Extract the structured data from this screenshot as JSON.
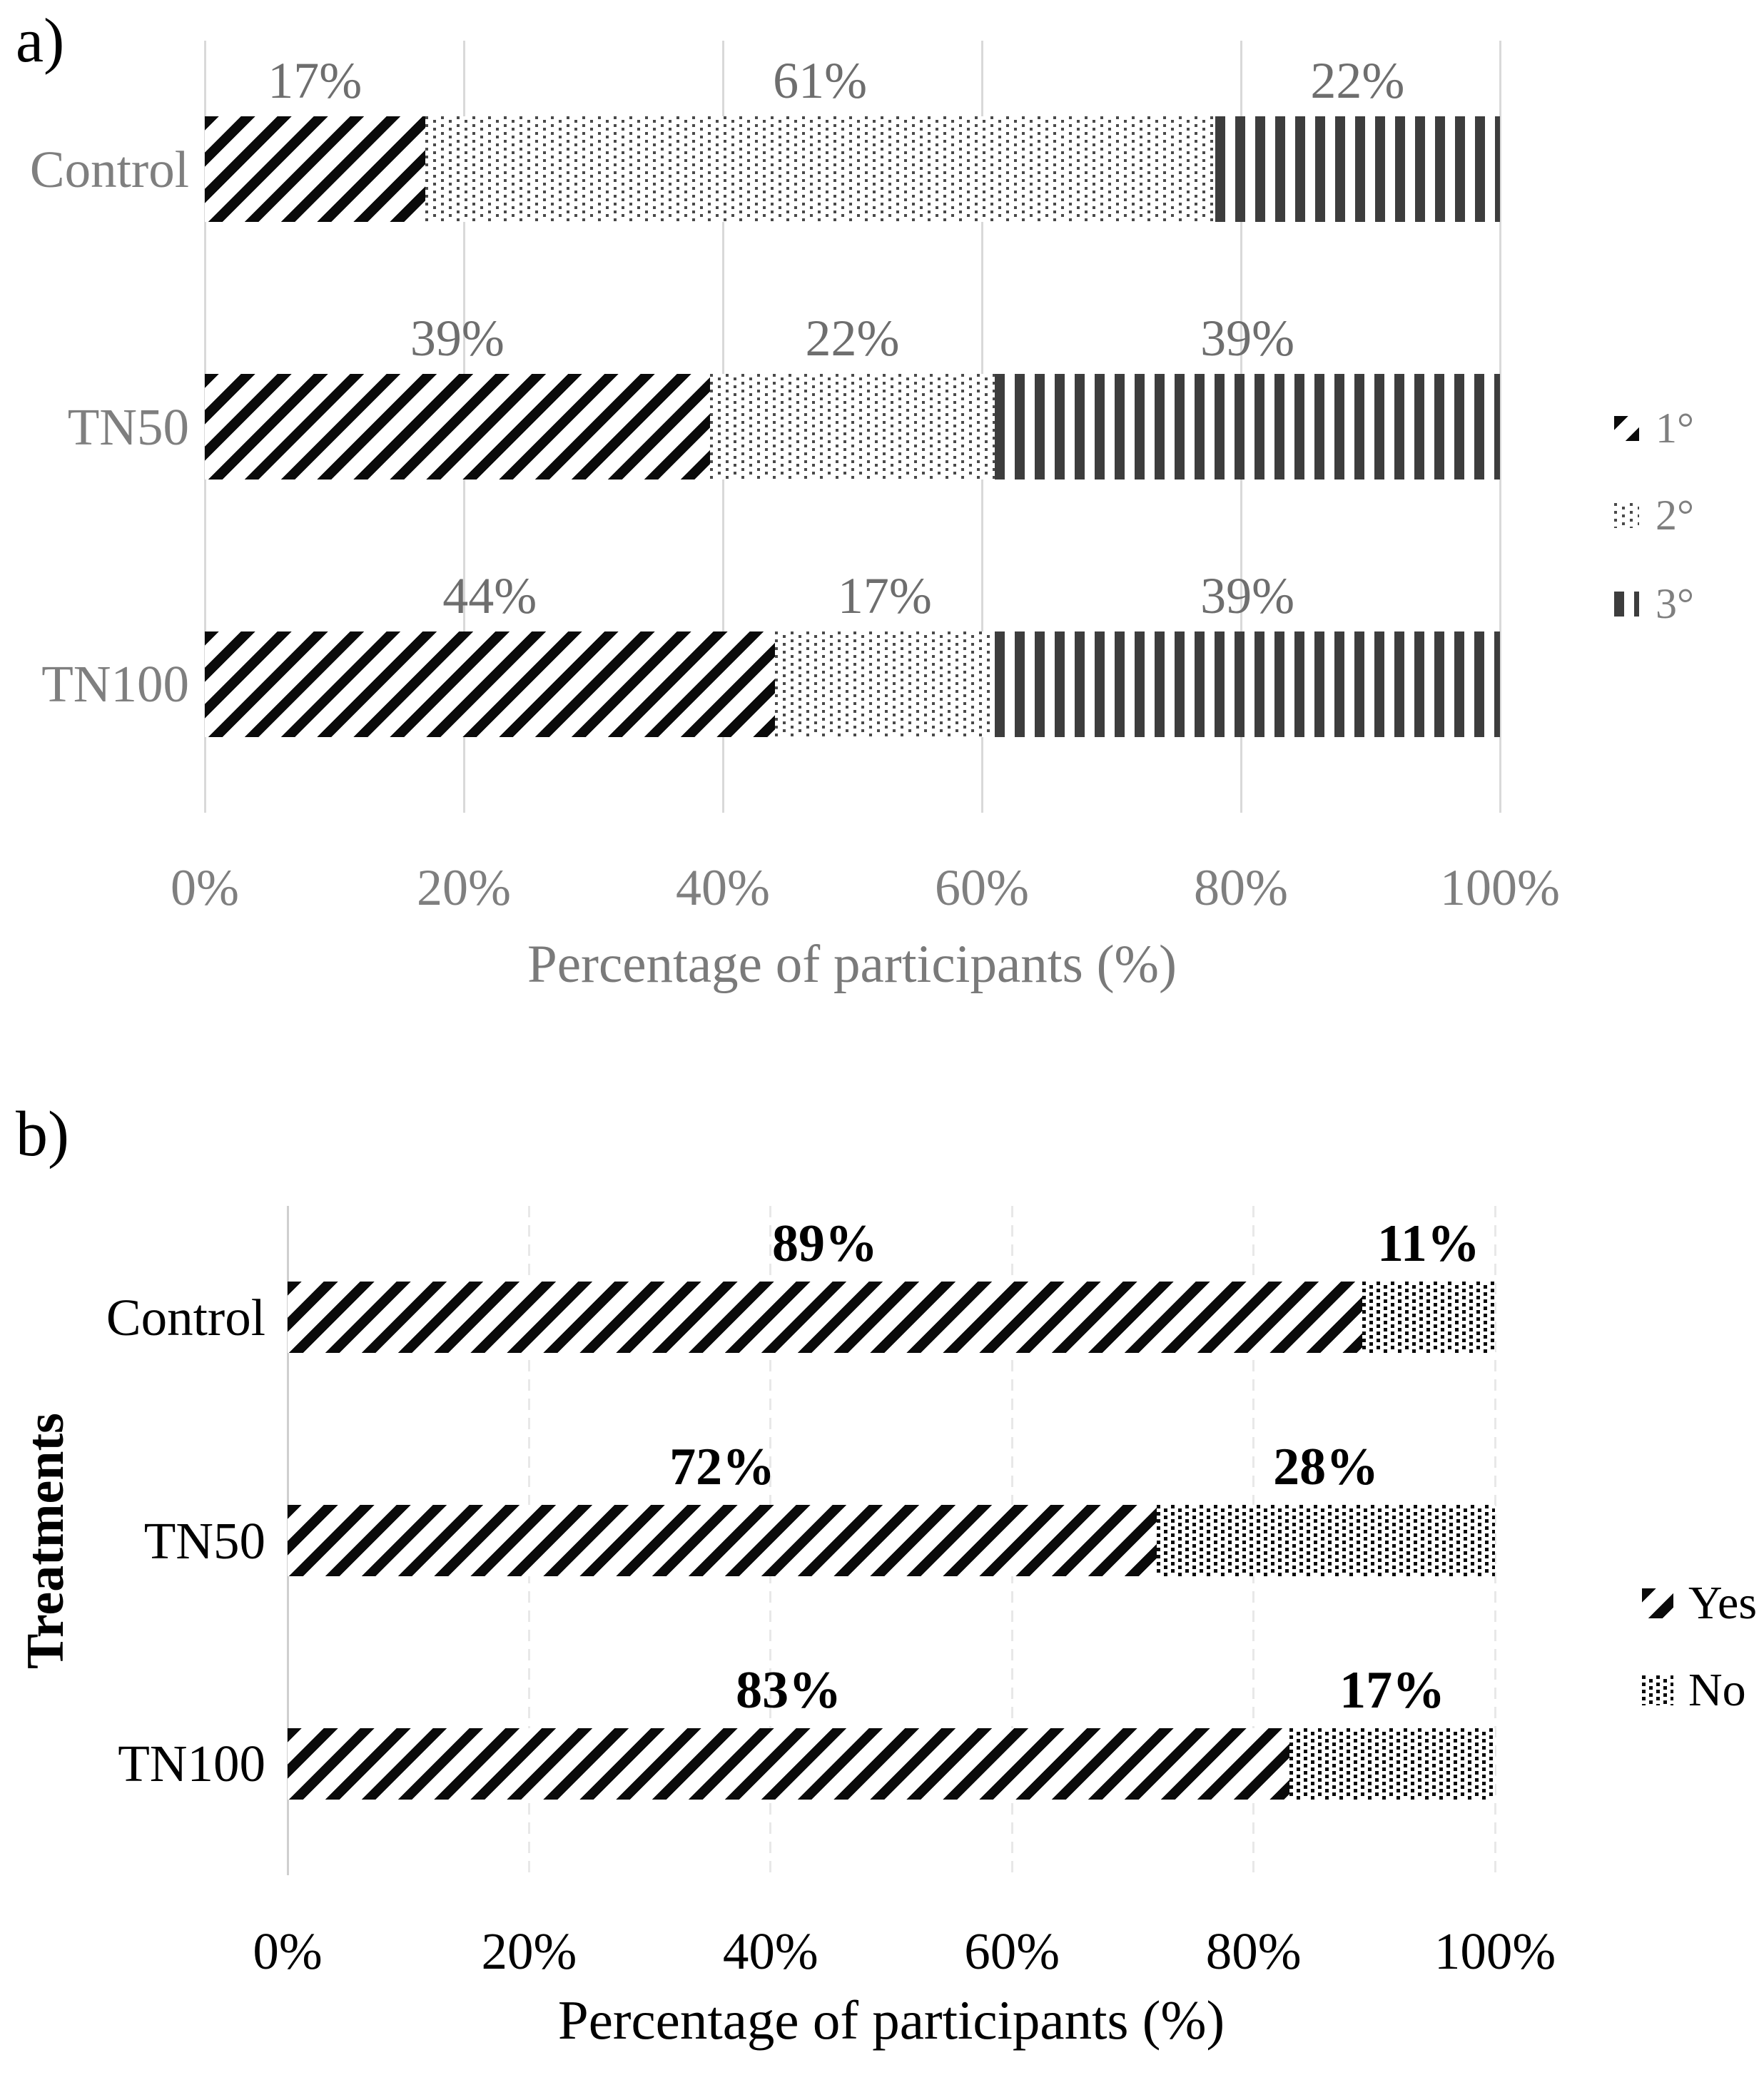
{
  "figure": {
    "background": "#ffffff",
    "panel_count": 2
  },
  "colors": {
    "panel_a_text": "#7f7f7f",
    "panel_a_data_labels": "#6e6e6e",
    "panel_a_gridlines": "#d9d9d9",
    "panel_b_text": "#000000",
    "panel_b_gridlines_dashed": "#e8e8e8",
    "panel_b_axis_line": "#cfcfcf",
    "stripe_black": "#0a0a0a",
    "dots_gray": "#4a4a4a",
    "vertical_stripes_gray": "#3d3d3d"
  },
  "chart_data": [
    {
      "type": "bar",
      "orientation": "horizontal",
      "stacked": true,
      "panel_tag": "a)",
      "categories": [
        "Control",
        "TN50",
        "TN100"
      ],
      "series": [
        {
          "name": "1°",
          "pattern": "diagonal-stripes-black",
          "values": [
            17,
            39,
            44
          ]
        },
        {
          "name": "2°",
          "pattern": "square-dots-gray",
          "values": [
            61,
            22,
            17
          ]
        },
        {
          "name": "3°",
          "pattern": "vertical-stripes-gray",
          "values": [
            22,
            39,
            39
          ]
        }
      ],
      "data_labels_by_category": [
        [
          "17%",
          "61%",
          "22%"
        ],
        [
          "39%",
          "22%",
          "39%"
        ],
        [
          "44%",
          "17%",
          "39%"
        ]
      ],
      "xlabel": "Percentage of participants (%)",
      "ylabel": "",
      "xlim": [
        0,
        100
      ],
      "x_ticks": [
        "0%",
        "20%",
        "40%",
        "60%",
        "80%",
        "100%"
      ],
      "x_tick_values": [
        0,
        20,
        40,
        60,
        80,
        100
      ],
      "gridlines": "solid vertical",
      "legend_position": "right",
      "legend_entries": [
        "1°",
        "2°",
        "3°"
      ]
    },
    {
      "type": "bar",
      "orientation": "horizontal",
      "stacked": true,
      "panel_tag": "b)",
      "categories": [
        "Control",
        "TN50",
        "TN100"
      ],
      "series": [
        {
          "name": "Yes",
          "pattern": "diagonal-stripes-black",
          "values": [
            89,
            72,
            83
          ]
        },
        {
          "name": "No",
          "pattern": "square-dots-black",
          "values": [
            11,
            28,
            17
          ]
        }
      ],
      "data_labels_by_category": [
        [
          "89%",
          "11%"
        ],
        [
          "72%",
          "28%"
        ],
        [
          "83%",
          "17%"
        ]
      ],
      "xlabel": "Percentage of participants (%)",
      "ylabel": "Treatments",
      "xlim": [
        0,
        100
      ],
      "x_ticks": [
        "0%",
        "20%",
        "40%",
        "60%",
        "80%",
        "100%"
      ],
      "x_tick_values": [
        0,
        20,
        40,
        60,
        80,
        100
      ],
      "gridlines": "dashed vertical, solid axis at 0%",
      "legend_position": "right",
      "legend_entries": [
        "Yes",
        "No"
      ]
    }
  ]
}
